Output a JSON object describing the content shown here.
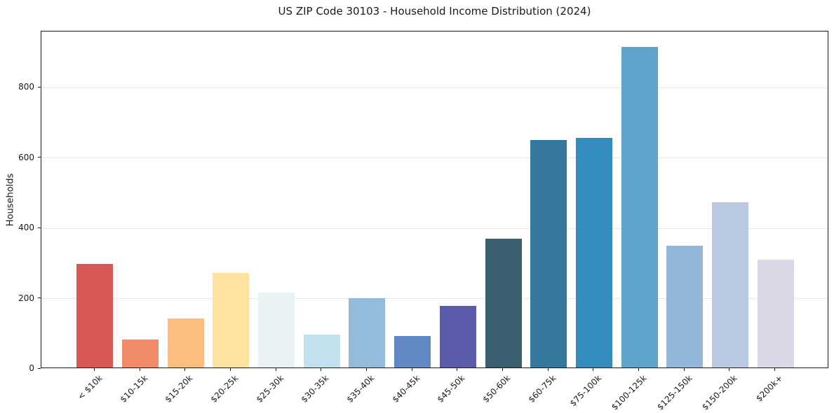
{
  "chart_data": {
    "type": "bar",
    "title": "US ZIP Code 30103 - Household Income Distribution (2024)",
    "xlabel": "",
    "ylabel": "Households",
    "categories": [
      "< $10k",
      "$10-15k",
      "$15-20k",
      "$20-25k",
      "$25-30k",
      "$30-35k",
      "$35-40k",
      "$40-45k",
      "$45-50k",
      "$50-60k",
      "$60-75k",
      "$75-100k",
      "$100-125k",
      "$125-150k",
      "$150-200k",
      "$200k+"
    ],
    "values": [
      295,
      80,
      140,
      269,
      213,
      94,
      198,
      90,
      176,
      367,
      647,
      653,
      913,
      347,
      471,
      307
    ],
    "bar_colors": [
      "#d65a53",
      "#f08b67",
      "#fcbd7d",
      "#fde39e",
      "#e8f2f5",
      "#c3e0ed",
      "#93bbdc",
      "#618ac4",
      "#5a5cab",
      "#3a5f6f",
      "#36799e",
      "#348cbf",
      "#5fa5cb",
      "#92b7da",
      "#bac9e2",
      "#d8d8e6"
    ],
    "yticks": [
      0,
      200,
      400,
      600,
      800
    ],
    "ylim": [
      0,
      960
    ],
    "grid": "horizontal-only",
    "legend": "none"
  },
  "colors": {
    "background": "#ffffff",
    "spine": "#1a1a1a",
    "grid": "#e6e6e6",
    "text": "#1a1a1a"
  }
}
